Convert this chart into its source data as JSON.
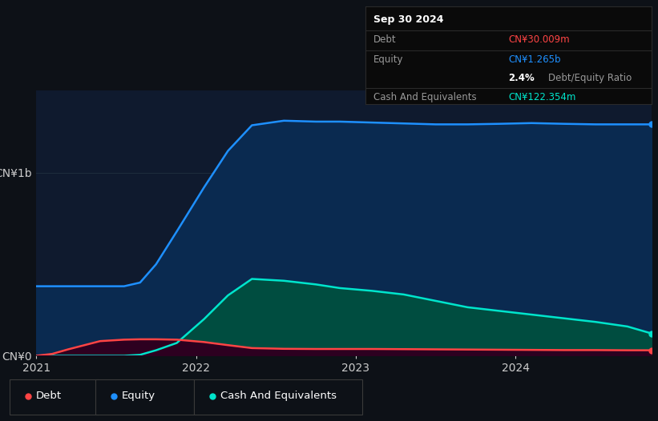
{
  "background_color": "#0d1117",
  "plot_bg_color": "#0f1a2e",
  "grid_color": "#1e2d3d",
  "debt_color": "#ff4444",
  "equity_color": "#1e90ff",
  "cash_color": "#00e5cc",
  "equity_fill_color": "#0a2a50",
  "cash_fill_color": "#004d40",
  "debt_fill_color": "#2d0020",
  "tooltip": {
    "date": "Sep 30 2024",
    "debt_label": "Debt",
    "debt_value": "CN¥30.009m",
    "equity_label": "Equity",
    "equity_value": "CN¥1.265b",
    "ratio_value": "2.4%",
    "ratio_label": "Debt/Equity Ratio",
    "cash_label": "Cash And Equivalents",
    "cash_value": "CN¥122.354m"
  },
  "legend_labels": [
    "Debt",
    "Equity",
    "Cash And Equivalents"
  ],
  "ylim": [
    0,
    1.45
  ],
  "ytick_positions": [
    0,
    1.0
  ],
  "ytick_labels": [
    "CN¥0",
    "CN¥1b"
  ],
  "x_range": [
    0.0,
    3.85
  ],
  "x_tick_positions": [
    0.0,
    1.0,
    2.0,
    3.0
  ],
  "x_tick_labels": [
    "2021",
    "2022",
    "2023",
    "2024"
  ],
  "equity_data": {
    "x": [
      0.0,
      0.1,
      0.2,
      0.4,
      0.55,
      0.65,
      0.75,
      0.88,
      1.05,
      1.2,
      1.35,
      1.55,
      1.75,
      1.9,
      2.1,
      2.3,
      2.5,
      2.7,
      2.9,
      3.1,
      3.3,
      3.5,
      3.7,
      3.85
    ],
    "y": [
      0.38,
      0.38,
      0.38,
      0.38,
      0.38,
      0.4,
      0.5,
      0.68,
      0.92,
      1.12,
      1.26,
      1.285,
      1.28,
      1.28,
      1.275,
      1.27,
      1.265,
      1.265,
      1.268,
      1.272,
      1.268,
      1.265,
      1.265,
      1.265
    ]
  },
  "cash_data": {
    "x": [
      0.0,
      0.1,
      0.2,
      0.4,
      0.55,
      0.65,
      0.75,
      0.88,
      1.05,
      1.2,
      1.35,
      1.55,
      1.75,
      1.9,
      2.1,
      2.3,
      2.5,
      2.7,
      2.9,
      3.1,
      3.3,
      3.5,
      3.7,
      3.85
    ],
    "y": [
      0.0,
      0.0,
      0.0,
      0.0,
      0.0,
      0.005,
      0.03,
      0.07,
      0.2,
      0.33,
      0.42,
      0.41,
      0.39,
      0.37,
      0.355,
      0.335,
      0.3,
      0.265,
      0.245,
      0.225,
      0.205,
      0.185,
      0.16,
      0.122
    ]
  },
  "debt_data": {
    "x": [
      0.0,
      0.1,
      0.2,
      0.4,
      0.55,
      0.65,
      0.75,
      0.88,
      1.05,
      1.2,
      1.35,
      1.55,
      1.75,
      1.9,
      2.1,
      2.3,
      2.5,
      2.7,
      2.9,
      3.1,
      3.3,
      3.5,
      3.7,
      3.85
    ],
    "y": [
      0.0,
      0.01,
      0.035,
      0.08,
      0.088,
      0.09,
      0.09,
      0.088,
      0.075,
      0.058,
      0.042,
      0.038,
      0.037,
      0.037,
      0.037,
      0.036,
      0.035,
      0.034,
      0.033,
      0.032,
      0.031,
      0.031,
      0.03,
      0.03
    ]
  }
}
